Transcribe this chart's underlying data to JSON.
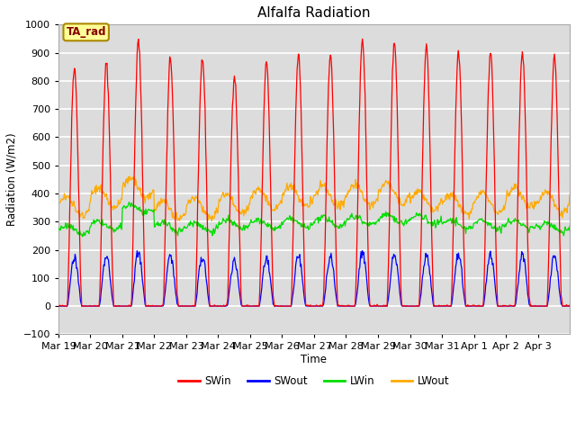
{
  "title": "Alfalfa Radiation",
  "ylabel": "Radiation (W/m2)",
  "xlabel": "Time",
  "ylim": [
    -100,
    1000
  ],
  "background_color": "#dcdcdc",
  "plot_bg_color": "#dcdcdc",
  "grid_color": "white",
  "series_colors": {
    "SWin": "#ff0000",
    "SWout": "#0000ff",
    "LWin": "#00dd00",
    "LWout": "#ffaa00"
  },
  "legend_label": "TA_rad",
  "legend_box_color": "#ffff99",
  "legend_box_edge": "#aa8800",
  "n_days": 16,
  "xtick_labels": [
    "Mar 19",
    "Mar 20",
    "Mar 21",
    "Mar 22",
    "Mar 23",
    "Mar 24",
    "Mar 25",
    "Mar 26",
    "Mar 27",
    "Mar 28",
    "Mar 29",
    "Mar 30",
    "Mar 31",
    "Apr 1",
    "Apr 2",
    "Apr 3"
  ]
}
